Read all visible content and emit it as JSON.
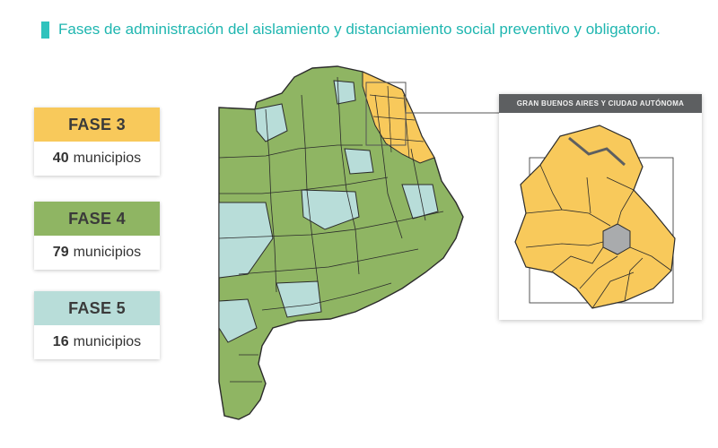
{
  "title": "Fases de administración del aislamiento y distanciamiento social preventivo y obligatorio.",
  "colors": {
    "title": "#1fb6b0",
    "fase3": "#f8c95b",
    "fase4": "#8fb563",
    "fase5": "#b8ddd9",
    "border": "#2b2b2b"
  },
  "legend": [
    {
      "phase": "FASE 3",
      "count": "40",
      "unit": "municipios",
      "color": "#f8c95b"
    },
    {
      "phase": "FASE 4",
      "count": "79",
      "unit": "municipios",
      "color": "#8fb563"
    },
    {
      "phase": "FASE 5",
      "count": "16",
      "unit": "municipios",
      "color": "#b8ddd9"
    }
  ],
  "inset": {
    "title": "GRAN BUENOS AIRES Y CIUDAD AUTÓNOMA"
  }
}
